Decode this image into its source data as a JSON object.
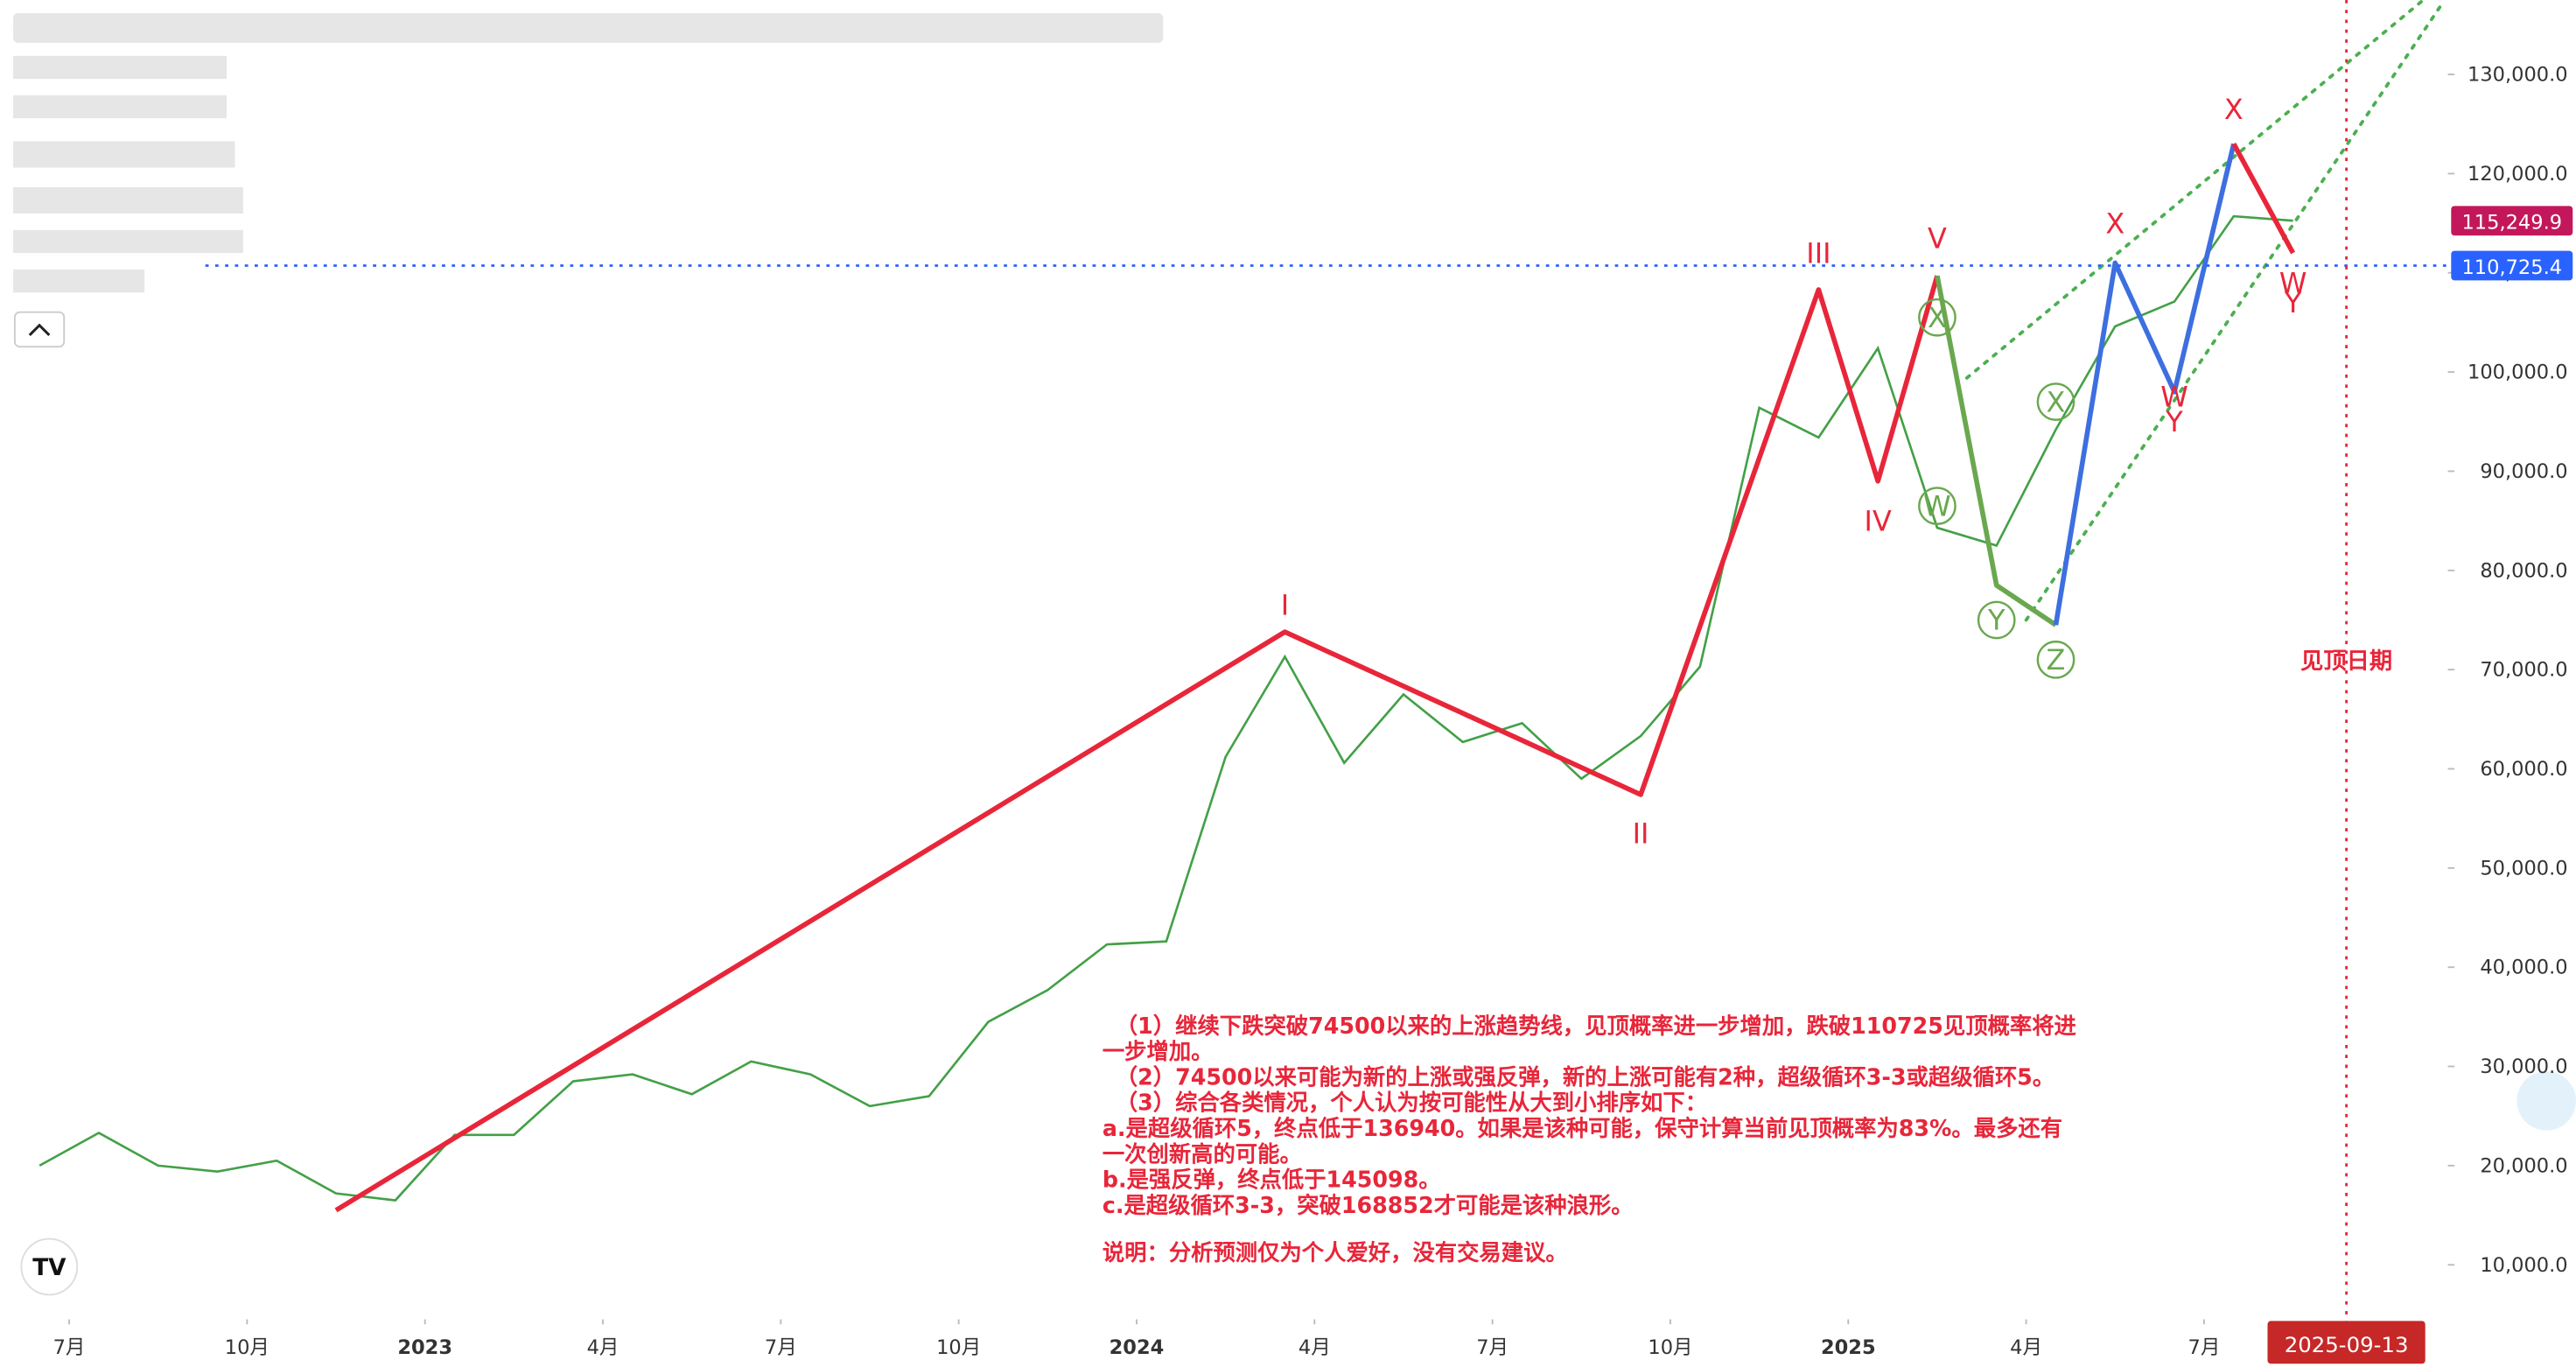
{
  "chart_data": {
    "type": "line",
    "x": [
      "2022-06",
      "2022-07",
      "2022-08",
      "2022-09",
      "2022-10",
      "2022-11",
      "2022-12",
      "2023-01",
      "2023-02",
      "2023-03",
      "2023-04",
      "2023-05",
      "2023-06",
      "2023-07",
      "2023-08",
      "2023-09",
      "2023-10",
      "2023-11",
      "2023-12",
      "2024-01",
      "2024-02",
      "2024-03",
      "2024-04",
      "2024-05",
      "2024-06",
      "2024-07",
      "2024-08",
      "2024-09",
      "2024-10",
      "2024-11",
      "2024-12",
      "2025-01",
      "2025-02",
      "2025-03",
      "2025-04",
      "2025-05",
      "2025-06",
      "2025-07",
      "2025-08"
    ],
    "series": [
      {
        "color": "#43a047",
        "values": [
          20000,
          23300,
          20000,
          19400,
          20500,
          17200,
          16500,
          23100,
          23100,
          28500,
          29200,
          27200,
          30500,
          29200,
          26000,
          27000,
          34500,
          37700,
          42300,
          42600,
          61200,
          71300,
          60600,
          67500,
          62700,
          64600,
          59000,
          63300,
          70300,
          96400,
          93400,
          102400,
          84300,
          82500,
          94200,
          104600,
          107100,
          115700,
          115249.9
        ]
      }
    ],
    "xlim": [
      "2022-06",
      "2025-11"
    ],
    "xticks": [
      {
        "value": "2022-07",
        "label": "7月"
      },
      {
        "value": "2022-10",
        "label": "10月"
      },
      {
        "value": "2023-01",
        "label": "2023"
      },
      {
        "value": "2023-04",
        "label": "4月"
      },
      {
        "value": "2023-07",
        "label": "7月"
      },
      {
        "value": "2023-10",
        "label": "10月"
      },
      {
        "value": "2024-01",
        "label": "2024"
      },
      {
        "value": "2024-04",
        "label": "4月"
      },
      {
        "value": "2024-07",
        "label": "7月"
      },
      {
        "value": "2024-10",
        "label": "10月"
      },
      {
        "value": "2025-01",
        "label": "2025"
      },
      {
        "value": "2025-04",
        "label": "4月"
      },
      {
        "value": "2025-07",
        "label": "7月"
      }
    ],
    "ylim": [
      5000,
      137500
    ],
    "yticks": [
      {
        "value": 10000,
        "label": "10,000.0"
      },
      {
        "value": 20000,
        "label": "20,000.0"
      },
      {
        "value": 30000,
        "label": "30,000.0"
      },
      {
        "value": 40000,
        "label": "40,000.0"
      },
      {
        "value": 50000,
        "label": "50,000.0"
      },
      {
        "value": 60000,
        "label": "60,000.0"
      },
      {
        "value": 70000,
        "label": "70,000.0"
      },
      {
        "value": 80000,
        "label": "80,000.0"
      },
      {
        "value": 90000,
        "label": "90,000.0"
      },
      {
        "value": 100000,
        "label": "100,000.0"
      },
      {
        "value": 110000,
        "label": "110,000.0"
      },
      {
        "value": 120000,
        "label": "120,000.0"
      },
      {
        "value": 130000,
        "label": "130,000.0"
      }
    ],
    "price_lines": [
      {
        "value": 115249.9,
        "label": "115,249.9",
        "color": "#c2185b",
        "dotted": false
      },
      {
        "value": 110725.4,
        "label": "110,725.4",
        "color": "#2962ff",
        "dotted": true
      }
    ],
    "waves": [
      {
        "color": "#e8263a",
        "x": [
          "2022-11",
          "2024-03",
          "2024-09",
          "2024-12",
          "2025-01",
          "2025-02"
        ],
        "values": [
          15500,
          73800,
          57400,
          108300,
          89000,
          109700
        ]
      },
      {
        "color": "#6aa84f",
        "x": [
          "2025-02",
          "2025-03",
          "2025-04"
        ],
        "values": [
          109700,
          78500,
          74500
        ]
      },
      {
        "color": "#3d6fe0",
        "x": [
          "2025-04",
          "2025-05",
          "2025-06",
          "2025-07"
        ],
        "values": [
          74500,
          111000,
          98000,
          123000
        ]
      },
      {
        "color": "#e8263a",
        "x": [
          "2025-07",
          "2025-08"
        ],
        "values": [
          123000,
          112000
        ]
      }
    ],
    "wave_labels": [
      {
        "text": "I",
        "x": "2024-03",
        "value": 76500,
        "color": "#e8263a",
        "circled": false
      },
      {
        "text": "II",
        "x": "2024-09",
        "value": 53500,
        "color": "#e8263a",
        "circled": false
      },
      {
        "text": "III",
        "x": "2024-12",
        "value": 112000,
        "color": "#e8263a",
        "circled": false
      },
      {
        "text": "IV",
        "x": "2025-01",
        "value": 85000,
        "color": "#e8263a",
        "circled": false
      },
      {
        "text": "V",
        "x": "2025-02",
        "value": 113500,
        "color": "#e8263a",
        "circled": false
      },
      {
        "text": "X",
        "x": "2025-02",
        "value": 105500,
        "color": "#6aa84f",
        "circled": true
      },
      {
        "text": "W",
        "x": "2025-02",
        "value": 86500,
        "color": "#6aa84f",
        "circled": true
      },
      {
        "text": "X",
        "x": "2025-04",
        "value": 97000,
        "color": "#6aa84f",
        "circled": true
      },
      {
        "text": "Y",
        "x": "2025-03",
        "value": 75000,
        "color": "#6aa84f",
        "circled": true
      },
      {
        "text": "Z",
        "x": "2025-04",
        "value": 71000,
        "color": "#6aa84f",
        "circled": true
      },
      {
        "text": "X",
        "x": "2025-05",
        "value": 115000,
        "color": "#e8263a",
        "circled": false
      },
      {
        "text": "W",
        "x": "2025-06",
        "value": 97500,
        "color": "#e8263a",
        "circled": false
      },
      {
        "text": "Y",
        "x": "2025-06",
        "value": 95000,
        "color": "#e8263a",
        "circled": false
      },
      {
        "text": "X",
        "x": "2025-07",
        "value": 126500,
        "color": "#e8263a",
        "circled": false
      },
      {
        "text": "W",
        "x": "2025-08",
        "value": 109000,
        "color": "#e8263a",
        "circled": false
      },
      {
        "text": "Y",
        "x": "2025-08",
        "value": 107000,
        "color": "#e8263a",
        "circled": false
      }
    ],
    "trendlines": [
      {
        "color": "#4caf50",
        "x": [
          "2025-03",
          "2025-11"
        ],
        "values": [
          99400,
          139000
        ]
      },
      {
        "color": "#4caf50",
        "x": [
          "2025-04",
          "2025-11"
        ],
        "values": [
          75000,
          137000
        ]
      }
    ],
    "top_date": {
      "x": "2025-09-13",
      "label": "2025-09-13",
      "annotation": "见顶日期",
      "color": "#e8263a"
    },
    "notes": [
      "（1）继续下跌突破74500以来的上涨趋势线，见顶概率进一步增加，跌破110725见顶概率将进",
      "一步增加。",
      "（2）74500以来可能为新的上涨或强反弹，新的上涨可能有2种，超级循环3-3或超级循环5。",
      "（3）综合各类情况，个人认为按可能性从大到小排序如下：",
      "a.是超级循环5，终点低于136940。如果是该种可能，保守计算当前见顶概率为83%。最多还有",
      "一次创新高的可能。",
      "b.是强反弹，终点低于145098。",
      "c.是超级循环3-3，突破168852才可能是该种浪形。"
    ],
    "disclaimer": "说明：分析预测仅为个人爱好，没有交易建议。"
  }
}
